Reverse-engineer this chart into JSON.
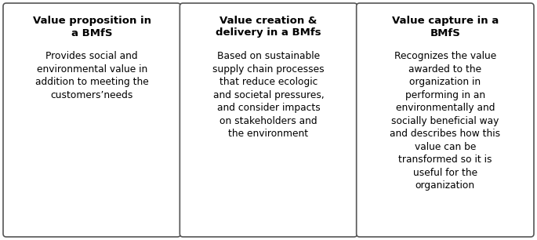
{
  "boxes": [
    {
      "title": "Value proposition in\na BMfS",
      "body": "Provides social and\nenvironmental value in\naddition to meeting the\ncustomers’needs"
    },
    {
      "title": "Value creation &\ndelivery in a BMfs",
      "body": "Based on sustainable\nsupply chain processes\nthat reduce ecologic\nand societal pressures,\nand consider impacts\non stakeholders and\nthe environment"
    },
    {
      "title": "Value capture in a\nBMfS",
      "body": "Recognizes the value\nawarded to the\norganization in\nperforming in an\nenvironmentally and\nsocially beneficial way\nand describes how this\nvalue can be\ntransformed so it is\nuseful for the\norganization"
    }
  ],
  "bg_color": "#ffffff",
  "box_edge_color": "#555555",
  "title_fontsize": 9.5,
  "body_fontsize": 8.8,
  "title_color": "#000000",
  "body_color": "#000000",
  "fig_width": 6.85,
  "fig_height": 3.06,
  "dpi": 100
}
